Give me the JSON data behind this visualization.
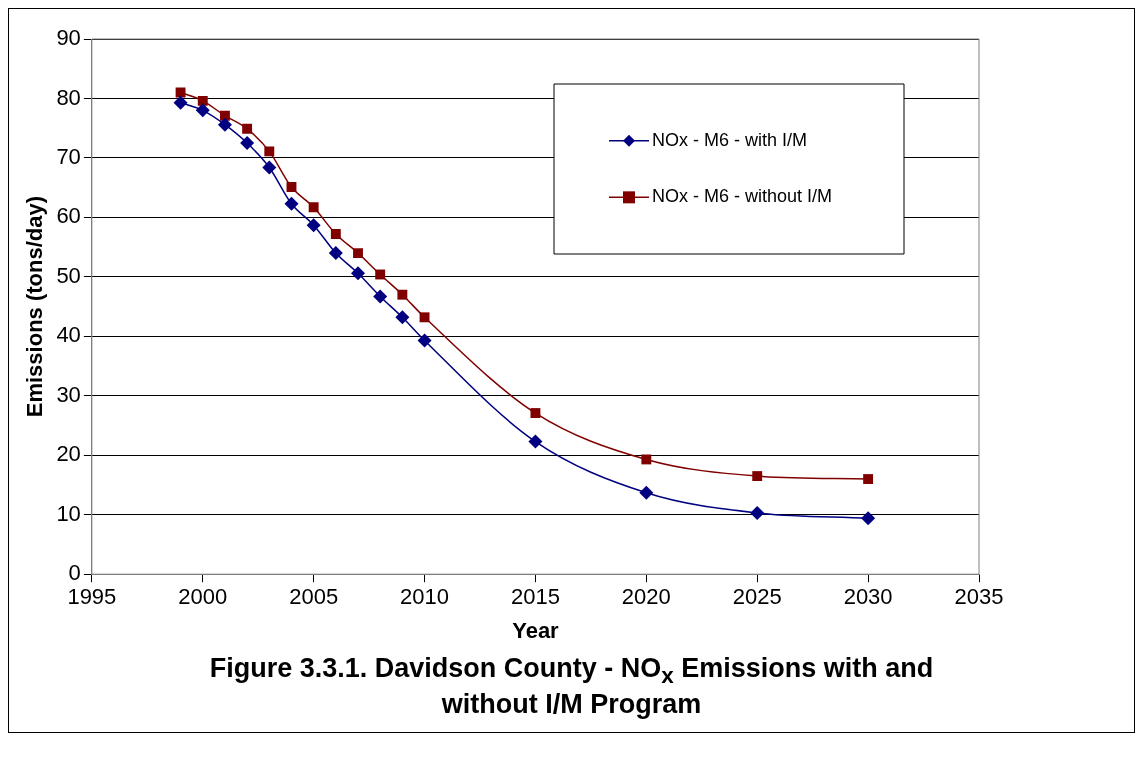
{
  "chart_data": {
    "type": "line",
    "title": "Figure 3.3.1. Davidson County - NO$_{x}$ Emissions with and without I/M Program",
    "xlabel": "Year",
    "ylabel": "Emissions (tons/day)",
    "x": [
      1999,
      2000,
      2001,
      2002,
      2003,
      2004,
      2005,
      2006,
      2007,
      2008,
      2009,
      2010,
      2015,
      2020,
      2025,
      2030
    ],
    "series": [
      {
        "name": "NOx - M6 - with I/M",
        "color": "#000080",
        "marker": "diamond",
        "values": [
          79.3,
          78,
          75.6,
          72.5,
          68.4,
          62.3,
          58.7,
          54,
          50.6,
          46.7,
          43.2,
          39.3,
          22.3,
          13.7,
          10.3,
          9.4
        ]
      },
      {
        "name": "NOx - M6 - without I/M",
        "color": "#800000",
        "marker": "square",
        "values": [
          81,
          79.6,
          77.1,
          74.9,
          71.1,
          65.1,
          61.7,
          57.2,
          54,
          50.4,
          47,
          43.2,
          27.1,
          19.3,
          16.5,
          16
        ]
      }
    ],
    "xlim": [
      1995,
      2035
    ],
    "xticks": [
      1995,
      2000,
      2005,
      2010,
      2015,
      2020,
      2025,
      2030,
      2035
    ],
    "ylim": [
      0,
      90
    ],
    "yticks": [
      0,
      10,
      20,
      30,
      40,
      50,
      60,
      70,
      80,
      90
    ],
    "grid": "y",
    "legend": "top right"
  }
}
